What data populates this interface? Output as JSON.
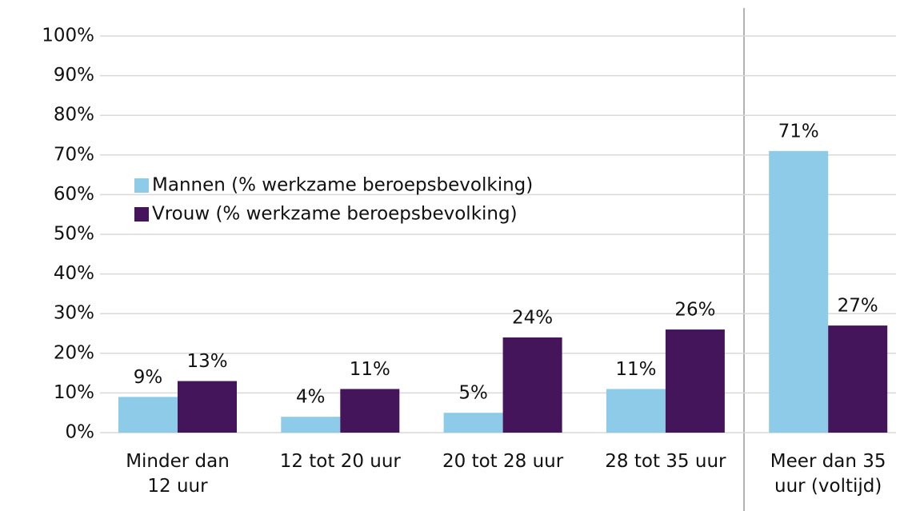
{
  "chart_data": {
    "type": "bar",
    "categories": [
      "Minder dan\n12 uur",
      "12 tot 20 uur",
      "20 tot 28 uur",
      "28 tot 35 uur",
      "Meer dan 35\nuur (voltijd)"
    ],
    "series": [
      {
        "name": "Mannen (% werkzame beroepsbevolking)",
        "color": "#8ecbe8",
        "values": [
          9,
          4,
          5,
          11,
          71
        ],
        "value_labels": [
          "9%",
          "4%",
          "5%",
          "11%",
          "71%"
        ]
      },
      {
        "name": "Vrouw (% werkzame beroepsbevolking)",
        "color": "#44155b",
        "values": [
          13,
          11,
          24,
          26,
          27
        ],
        "value_labels": [
          "13%",
          "11%",
          "24%",
          "26%",
          "27%"
        ]
      }
    ],
    "ylim": [
      0,
      100
    ],
    "yticks": [
      {
        "value": 0,
        "label": "0%"
      },
      {
        "value": 10,
        "label": "10%"
      },
      {
        "value": 20,
        "label": "20%"
      },
      {
        "value": 30,
        "label": "30%"
      },
      {
        "value": 40,
        "label": "40%"
      },
      {
        "value": 50,
        "label": "50%"
      },
      {
        "value": 60,
        "label": "60%"
      },
      {
        "value": 70,
        "label": "70%"
      },
      {
        "value": 80,
        "label": "80%"
      },
      {
        "value": 90,
        "label": "90%"
      },
      {
        "value": 100,
        "label": "100%"
      }
    ],
    "grid": true
  }
}
